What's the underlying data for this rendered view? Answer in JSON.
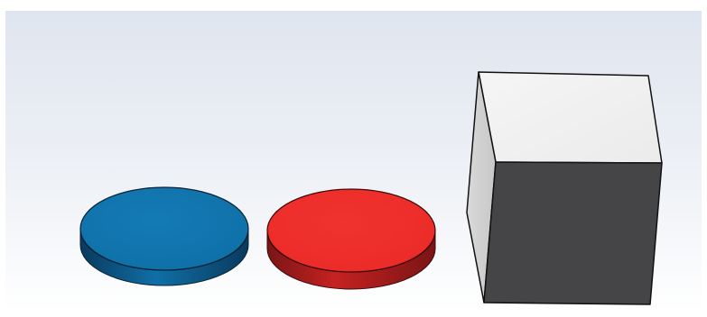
{
  "scene": {
    "background_top": "#dfe5ef",
    "background_bottom": "#ffffff",
    "frame_color": "#ffffff",
    "objects": [
      {
        "kind": "disc",
        "color": "#0f6fa6",
        "shade_color": "#0a3a5e",
        "edge_color": "#0b2233"
      },
      {
        "kind": "disc",
        "color": "#eb2a27",
        "shade_color": "#7a1515",
        "edge_color": "#3a0a0a"
      },
      {
        "kind": "cube",
        "top_color": "#ebebeb",
        "side_color": "#c7c7c7",
        "front_color": "#454446",
        "edge_color": "#111111"
      }
    ]
  }
}
